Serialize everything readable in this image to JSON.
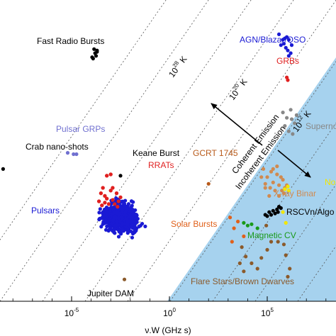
{
  "chart_data": {
    "type": "scatter",
    "xlabel": "ν.W (GHz s)",
    "x_scale": "log",
    "x_ticks": [
      {
        "value": 1e-05,
        "base": "10",
        "exp": "-5"
      },
      {
        "value": 1,
        "base": "10",
        "exp": "0"
      },
      {
        "value": 100000,
        "base": "10",
        "exp": "5"
      }
    ],
    "grid": false,
    "colors": {
      "incoherent_region": "#a6d2ee",
      "isotherm": "#555555",
      "arrow": "#000000"
    },
    "isotherms": [
      {
        "label_base": "10",
        "label_exp": "28",
        "label_unit": "K"
      },
      {
        "label_base": "10",
        "label_exp": "20",
        "label_unit": "K"
      },
      {
        "label_base": "10",
        "label_exp": "12",
        "label_unit": "K"
      }
    ],
    "regions": {
      "coherent": "Coherent Emission",
      "incoherent": "Incoherent Emission"
    },
    "series": [
      {
        "name": "Fast Radio Bursts",
        "color": "#000000",
        "points": [
          [
            -3.9,
            -0.2
          ],
          [
            -3.8,
            0.0
          ],
          [
            -3.75,
            -0.1
          ],
          [
            -3.7,
            0.1
          ],
          [
            -3.85,
            0.15
          ],
          [
            -3.7,
            0.05
          ],
          [
            -3.95,
            -0.15
          ]
        ]
      },
      {
        "name": "AGN/Blazar/QSO",
        "color": "#1a1ad4",
        "points": [
          [
            5.6,
            0.7
          ],
          [
            5.8,
            0.5
          ],
          [
            5.9,
            0.55
          ],
          [
            6.0,
            0.6
          ],
          [
            6.1,
            0.5
          ],
          [
            5.7,
            0.3
          ],
          [
            5.95,
            0.2
          ],
          [
            6.05,
            0.1
          ],
          [
            6.2,
            0.0
          ],
          [
            6.1,
            -0.1
          ],
          [
            6.25,
            0.3
          ],
          [
            5.85,
            0.35
          ]
        ]
      },
      {
        "name": "GRBs",
        "color": "#e02020",
        "points": [
          [
            6.0,
            -0.9
          ],
          [
            6.05,
            -1.0
          ]
        ]
      },
      {
        "name": "Pulsar GRPs",
        "color": "#7070d0",
        "points": [
          [
            -5.2,
            -3.7
          ],
          [
            -4.9,
            -3.75
          ],
          [
            -4.75,
            -3.75
          ]
        ]
      },
      {
        "name": "Crab nano-shots",
        "color": "#000000",
        "points": [
          [
            -8.5,
            -4.3
          ]
        ]
      },
      {
        "name": "Keane Burst",
        "color": "#000000",
        "points": [
          [
            -2.5,
            -4.55
          ]
        ]
      },
      {
        "name": "RRATs",
        "color": "#e02020",
        "points": [
          [
            -3.2,
            -4.55
          ],
          [
            -3.0,
            -4.5
          ],
          [
            -3.4,
            -5.0
          ],
          [
            -3.0,
            -5.1
          ],
          [
            -3.3,
            -5.3
          ],
          [
            -2.9,
            -5.0
          ],
          [
            -3.2,
            -5.4
          ],
          [
            -2.7,
            -5.2
          ],
          [
            -3.5,
            -5.2
          ],
          [
            -2.6,
            -5.5
          ],
          [
            -3.1,
            -5.6
          ],
          [
            -2.8,
            -5.6
          ],
          [
            -3.6,
            -5.5
          ],
          [
            -2.5,
            -5.35
          ],
          [
            -3.3,
            -5.55
          ],
          [
            -2.9,
            -5.45
          ],
          [
            -3.45,
            -5.65
          ],
          [
            -2.65,
            -5.7
          ]
        ]
      },
      {
        "name": "GCRT 1745",
        "color": "#b85a1a",
        "points": [
          [
            2.0,
            -4.85
          ]
        ]
      },
      {
        "name": "Solar Bursts",
        "color": "#e0601a",
        "points": [
          [
            3.1,
            -6.1
          ],
          [
            3.3,
            -6.5
          ],
          [
            3.5,
            -6.25
          ],
          [
            3.8,
            -6.8
          ],
          [
            3.2,
            -7.0
          ]
        ]
      },
      {
        "name": "X-ray Binaries",
        "color": "#d08a50",
        "points": [
          [
            4.8,
            -4.3
          ],
          [
            5.0,
            -4.6
          ],
          [
            5.2,
            -4.4
          ],
          [
            5.3,
            -4.8
          ],
          [
            5.5,
            -4.5
          ],
          [
            5.6,
            -4.9
          ],
          [
            5.8,
            -4.7
          ],
          [
            5.9,
            -5.0
          ],
          [
            5.7,
            -4.6
          ],
          [
            5.4,
            -5.1
          ],
          [
            4.9,
            -5.0
          ],
          [
            5.1,
            -5.3
          ],
          [
            5.6,
            -5.3
          ],
          [
            6.0,
            -4.9
          ],
          [
            5.85,
            -5.2
          ],
          [
            5.5,
            -4.2
          ],
          [
            4.7,
            -4.6
          ],
          [
            5.3,
            -4.3
          ],
          [
            5.75,
            -5.1
          ],
          [
            4.9,
            -4.85
          ],
          [
            5.15,
            -5.0
          ]
        ]
      },
      {
        "name": "Supernovae",
        "color": "#888888",
        "points": [
          [
            5.8,
            -2.2
          ],
          [
            6.0,
            -2.4
          ],
          [
            6.2,
            -2.1
          ],
          [
            6.4,
            -2.6
          ],
          [
            6.1,
            -2.9
          ],
          [
            6.3,
            -3.0
          ],
          [
            5.9,
            -2.7
          ],
          [
            6.5,
            -2.3
          ],
          [
            6.25,
            -2.45
          ]
        ]
      },
      {
        "name": "Novae",
        "color": "#f2e600",
        "points": [
          [
            5.9,
            -5.05
          ],
          [
            6.1,
            -5.1
          ],
          [
            6.05,
            -4.95
          ],
          [
            5.8,
            -5.9
          ],
          [
            5.95,
            -6.3
          ]
        ]
      },
      {
        "name": "RSCVn/Algol",
        "color": "#000000",
        "points": [
          [
            4.9,
            -6.0
          ],
          [
            5.1,
            -5.9
          ],
          [
            5.2,
            -6.0
          ],
          [
            5.3,
            -5.85
          ],
          [
            5.5,
            -5.8
          ],
          [
            5.6,
            -5.7
          ],
          [
            5.7,
            -5.75
          ],
          [
            5.4,
            -5.95
          ],
          [
            5.0,
            -6.05
          ],
          [
            5.55,
            -5.9
          ]
        ]
      },
      {
        "name": "Magnetic CV",
        "color": "#1a9a1a",
        "points": [
          [
            3.8,
            -6.3
          ],
          [
            4.0,
            -6.4
          ],
          [
            4.2,
            -6.35
          ],
          [
            4.5,
            -6.5
          ]
        ]
      },
      {
        "name": "Flare Stars/Brown Dwarves",
        "color": "#8b5a2b",
        "points": [
          [
            3.7,
            -7.2
          ],
          [
            3.9,
            -7.55
          ],
          [
            3.6,
            -7.8
          ],
          [
            4.2,
            -7.8
          ],
          [
            4.5,
            -8.0
          ],
          [
            4.7,
            -7.6
          ],
          [
            5.0,
            -7.3
          ],
          [
            3.8,
            -8.1
          ],
          [
            4.95,
            -6.4
          ],
          [
            5.2,
            -7.0
          ],
          [
            5.55,
            -7.0
          ],
          [
            5.85,
            -7.1
          ],
          [
            5.95,
            -7.5
          ],
          [
            6.15,
            -8.0
          ],
          [
            6.05,
            -8.3
          ]
        ]
      },
      {
        "name": "Jupiter DAM",
        "color": "#8b5a2b",
        "points": [
          [
            -2.3,
            -8.4
          ]
        ]
      }
    ],
    "annotations": {
      "fast_radio_bursts": "Fast Radio Bursts",
      "agn": "AGN/Blazar/QSO",
      "grbs": "GRBs",
      "pulsar_grps": "Pulsar GRPs",
      "crab": "Crab nano-shots",
      "keane": "Keane Burst",
      "rrats": "RRATs",
      "gcrt": "GCRT 1745",
      "pulsars": "Pulsars",
      "solar": "Solar Bursts",
      "xray": "X-ray Binar",
      "novae": "No",
      "supernovae": "Superno",
      "rscvn": "RSCVn/Algo",
      "magcv": "Magnetic CV",
      "flare": "Flare Stars/Brown Dwarves",
      "jupiter": "Jupiter DAM"
    }
  }
}
